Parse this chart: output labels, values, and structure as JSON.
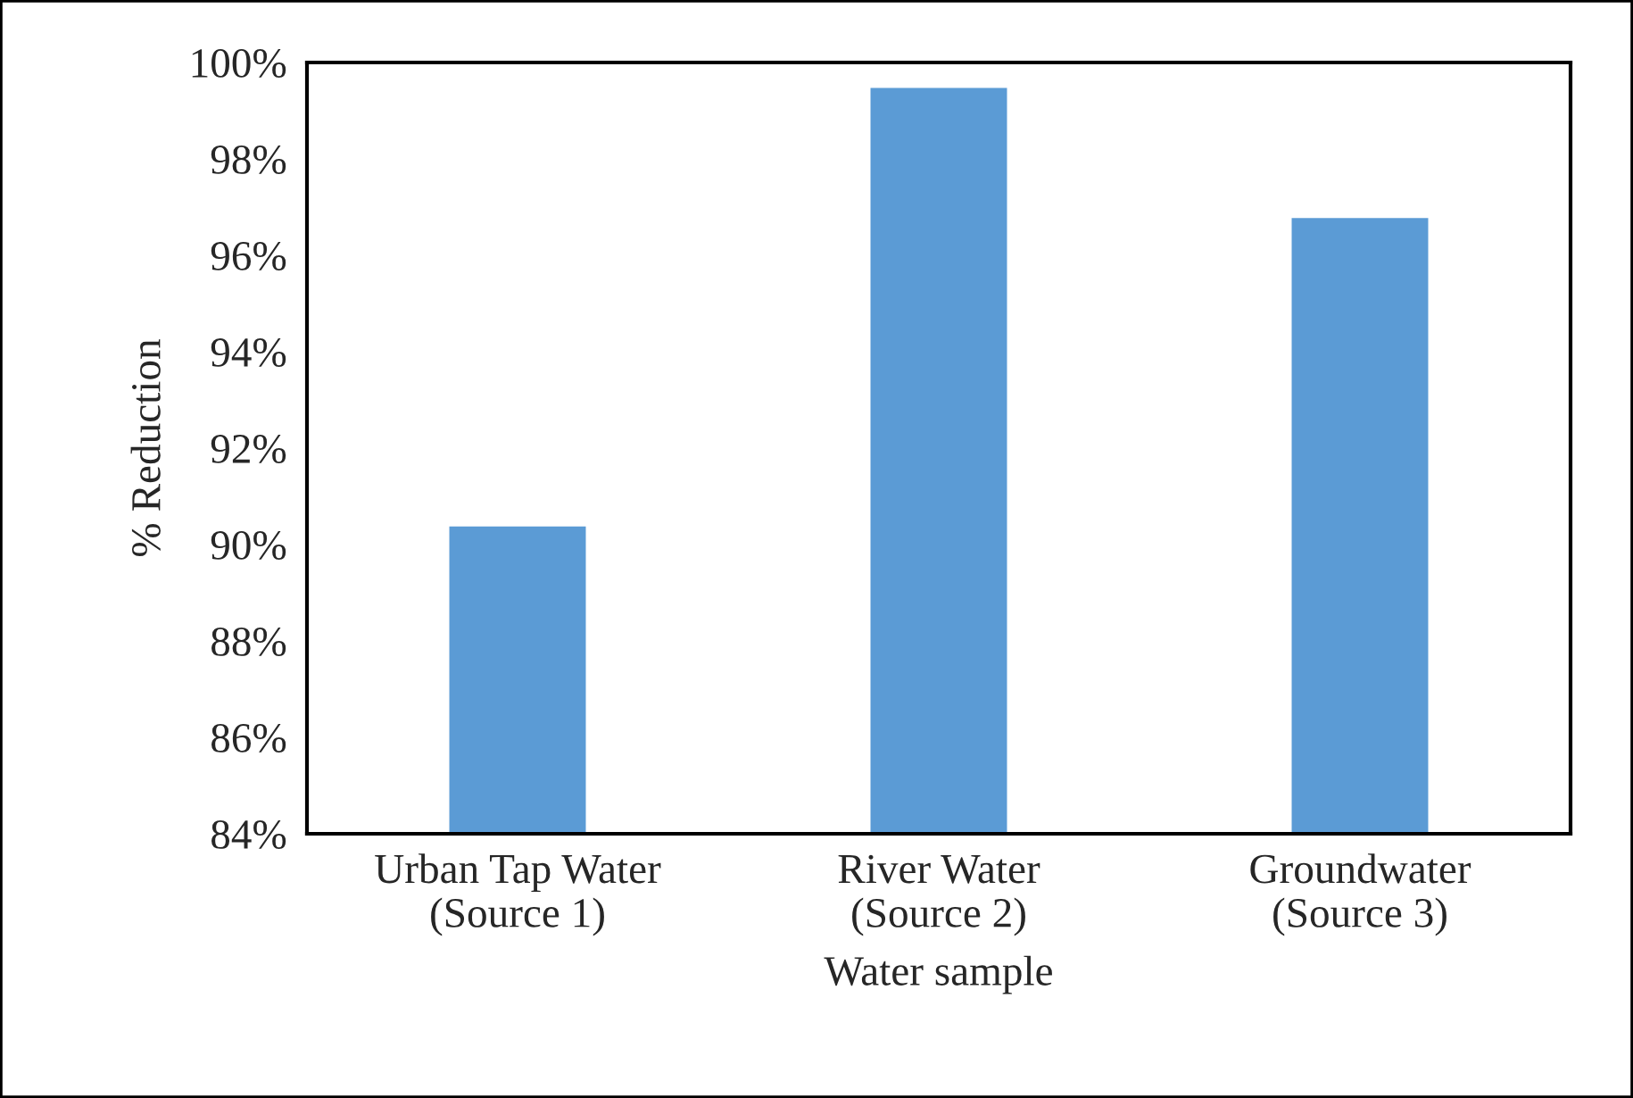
{
  "chart_data": {
    "type": "bar",
    "xlabel": "Water sample",
    "ylabel": "% Reduction",
    "categories": [
      "Urban Tap Water\n(Source 1)",
      "River Water\n(Source 2)",
      "Groundwater\n(Source 3)"
    ],
    "values": [
      90.4,
      99.5,
      96.8
    ],
    "color": "#5b9bd5",
    "ylim": [
      84,
      100
    ],
    "yticks": [
      {
        "value": 84,
        "label": "84%"
      },
      {
        "value": 86,
        "label": "86%"
      },
      {
        "value": 88,
        "label": "88%"
      },
      {
        "value": 90,
        "label": "90%"
      },
      {
        "value": 92,
        "label": "92%"
      },
      {
        "value": 94,
        "label": "94%"
      },
      {
        "value": 96,
        "label": "96%"
      },
      {
        "value": 98,
        "label": "98%"
      },
      {
        "value": 100,
        "label": "100%"
      }
    ],
    "grid": false,
    "legend": false
  }
}
